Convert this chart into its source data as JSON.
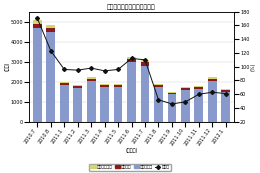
{
  "title": "民生用電子機器出荷金額推移",
  "ylabel_left": "(億円)",
  "ylabel_right": "(%)",
  "xlabel": "(年・月)",
  "categories": [
    "2010.7",
    "2010.8",
    "2011.1",
    "2011.2",
    "2011.3",
    "2011.4",
    "2011.5",
    "2011.6",
    "2011.7",
    "2011.8",
    "2011.9",
    "2011.10",
    "2011.11",
    "2011.12",
    "2012.1"
  ],
  "plasma_values": [
    200,
    170,
    80,
    70,
    90,
    70,
    70,
    110,
    110,
    55,
    45,
    50,
    55,
    80,
    55
  ],
  "liquid_values": [
    200,
    160,
    80,
    80,
    100,
    80,
    90,
    140,
    160,
    80,
    55,
    65,
    70,
    110,
    75
  ],
  "other_values": [
    4700,
    4500,
    1850,
    1700,
    2050,
    1750,
    1750,
    3000,
    2800,
    1750,
    1400,
    1600,
    1650,
    2050,
    1500
  ],
  "yoy_values": [
    170,
    123,
    96,
    95,
    98,
    94,
    96,
    112,
    110,
    52,
    46,
    49,
    60,
    63,
    61
  ],
  "bar_color_plasma": "#d4d470",
  "bar_color_liquid": "#8b1a1a",
  "bar_color_other": "#8899cc",
  "line_color": "#111111",
  "bg_color": "#ffffff",
  "ylim_left": [
    0,
    5500
  ],
  "ylim_right": [
    20,
    180
  ],
  "yticks_left": [
    0,
    1000,
    2000,
    3000,
    4000,
    5000
  ],
  "yticks_right": [
    20,
    40,
    60,
    80,
    100,
    120,
    140,
    160,
    180
  ],
  "legend_labels": [
    "プラズマ製品",
    "液晶製品",
    "薄型製品計",
    "前年比"
  ],
  "figsize": [
    2.6,
    1.73
  ],
  "dpi": 100,
  "title_fontsize": 4.5,
  "axis_fontsize": 3.5,
  "legend_fontsize": 3.2
}
